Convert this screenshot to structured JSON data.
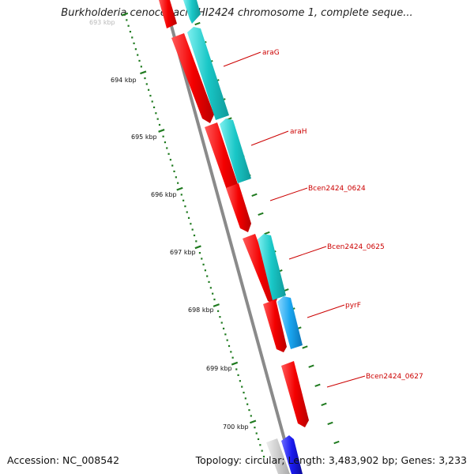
{
  "header": {
    "title": "Burkholderia cenocepacia HI2424 chromosome 1, complete seque..."
  },
  "footer": {
    "accession": "Accession: NC_008542",
    "summary": "Topology: circular; Length: 3,483,902 bp; Genes: 3,233"
  },
  "ruler": {
    "labels": [
      "693 kbp",
      "694 kbp",
      "695 kbp",
      "696 kbp",
      "697 kbp",
      "698 kbp",
      "699 kbp",
      "700 kbp"
    ]
  },
  "genes": {
    "labels": [
      "araG",
      "araH",
      "Bcen2424_0624",
      "Bcen2424_0625",
      "pyrF",
      "Bcen2424_0627"
    ]
  },
  "colors": {
    "backbone": "#8a8a8a",
    "ruler_ticks": "#1f7a1f",
    "forward_cds": "#f40000",
    "reverse_cds": "#19c7c7",
    "reverse_cds_alt": "#1aa6f0",
    "other_feature": "#c8c8c8",
    "other_forward": "#1a1aee",
    "label_text": "#cc0000"
  }
}
